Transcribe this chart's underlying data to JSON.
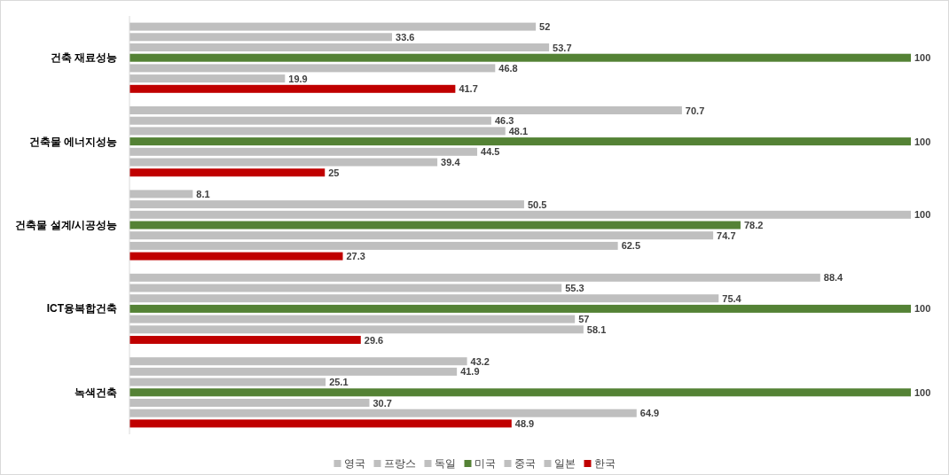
{
  "chart_data": {
    "type": "bar",
    "orientation": "horizontal",
    "data_labels": true,
    "legend": "bottom",
    "categories": [
      "건축 재료성능",
      "건축물 에너지성능",
      "건축물 설계/시공성능",
      "ICT융복합건축",
      "녹색건축"
    ],
    "series": [
      {
        "name": "영국",
        "color": "#bfbfbf",
        "values": [
          52,
          70.7,
          8.1,
          88.4,
          43.2
        ]
      },
      {
        "name": "프랑스",
        "color": "#bfbfbf",
        "values": [
          33.6,
          46.3,
          50.5,
          55.3,
          41.9
        ]
      },
      {
        "name": "독일",
        "color": "#bfbfbf",
        "values": [
          53.7,
          48.1,
          100,
          75.4,
          25.1
        ]
      },
      {
        "name": "미국",
        "color": "#548235",
        "values": [
          100,
          100,
          78.2,
          100,
          100
        ]
      },
      {
        "name": "중국",
        "color": "#bfbfbf",
        "values": [
          46.8,
          44.5,
          74.7,
          57,
          30.7
        ]
      },
      {
        "name": "일본",
        "color": "#bfbfbf",
        "values": [
          19.9,
          39.4,
          62.5,
          58.1,
          64.9
        ]
      },
      {
        "name": "한국",
        "color": "#c00000",
        "values": [
          41.7,
          25,
          27.3,
          29.6,
          48.9
        ]
      }
    ]
  }
}
